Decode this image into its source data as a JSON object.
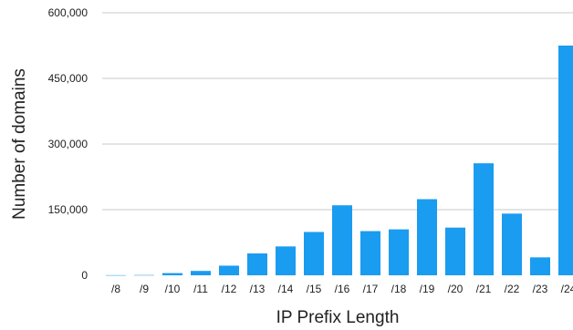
{
  "chart_data": {
    "type": "bar",
    "title": "",
    "xlabel": "IP Prefix Length",
    "ylabel": "Number of domains",
    "categories": [
      "/8",
      "/9",
      "/10",
      "/11",
      "/12",
      "/13",
      "/14",
      "/15",
      "/16",
      "/17",
      "/18",
      "/19",
      "/20",
      "/21",
      "/22",
      "/23",
      "/24"
    ],
    "values": [
      300,
      600,
      5000,
      10000,
      22000,
      50000,
      66000,
      99000,
      160000,
      101000,
      105000,
      174000,
      109000,
      256000,
      141000,
      41000,
      525000
    ],
    "yticks": [
      0,
      150000,
      300000,
      450000,
      600000
    ],
    "ytick_labels": [
      "0",
      "150,000",
      "300,000",
      "450,000",
      "600,000"
    ],
    "ylim": [
      0,
      600000
    ],
    "grid": true,
    "legend": "none",
    "bar_color": "#1a9cf0"
  }
}
